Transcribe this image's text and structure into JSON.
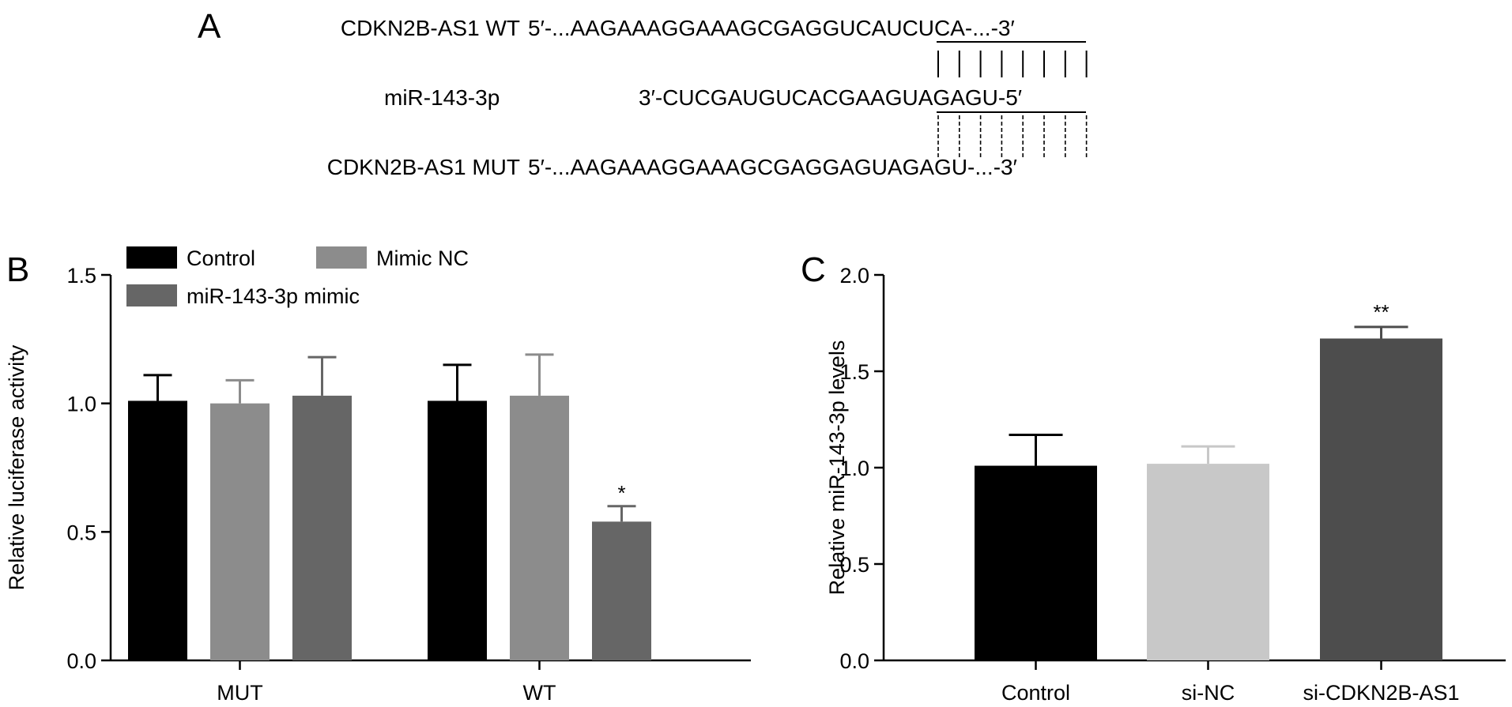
{
  "panel_a": {
    "letter": "A",
    "rows": [
      {
        "label": "CDKN2B-AS1 WT",
        "sequence": "5′-...AAGAAAGGAAAGCGAGGUCAUCUCA-...-3′"
      },
      {
        "label": "miR-143-3p",
        "sequence": "3′-CUCGAUGUCACGAAGUAGAGU-5′"
      },
      {
        "label": "CDKN2B-AS1 MUT",
        "sequence": "5′-...AAGAAAGGAAAGCGAGGAGUAGAGU-...-3′"
      }
    ]
  },
  "chart_data": [
    {
      "panel": "B",
      "type": "bar",
      "categories": [
        "MUT",
        "WT"
      ],
      "series": [
        {
          "name": "Control",
          "values": [
            1.01,
            1.01
          ],
          "errors": [
            0.1,
            0.14
          ],
          "color": "#000000"
        },
        {
          "name": "Mimic NC",
          "values": [
            1.0,
            1.03
          ],
          "errors": [
            0.09,
            0.16
          ],
          "color": "#8c8c8c"
        },
        {
          "name": "miR-143-3p mimic",
          "values": [
            1.03,
            0.54
          ],
          "errors": [
            0.15,
            0.06
          ],
          "color": "#666666"
        }
      ],
      "annotations": [
        {
          "category": "WT",
          "series": "miR-143-3p mimic",
          "text": "*"
        }
      ],
      "ylabel": "Relative luciferase activity",
      "ylim": [
        0,
        1.5
      ],
      "yticks": [
        "0.0",
        "0.5",
        "1.0",
        "1.5"
      ],
      "legend": "top-left",
      "grid": false
    },
    {
      "panel": "C",
      "type": "bar",
      "categories": [
        "Control",
        "si-NC",
        "si-CDKN2B-AS1"
      ],
      "values": [
        1.01,
        1.02,
        1.67
      ],
      "errors": [
        0.16,
        0.09,
        0.06
      ],
      "colors": [
        "#000000",
        "#c8c8c8",
        "#4d4d4d"
      ],
      "annotations": [
        {
          "category": "si-CDKN2B-AS1",
          "text": "**"
        }
      ],
      "ylabel": "Relative miR-143-3p levels",
      "ylim": [
        0,
        2.0
      ],
      "yticks": [
        "0.0",
        "0.5",
        "1.0",
        "1.5",
        "2.0"
      ],
      "grid": false
    }
  ]
}
